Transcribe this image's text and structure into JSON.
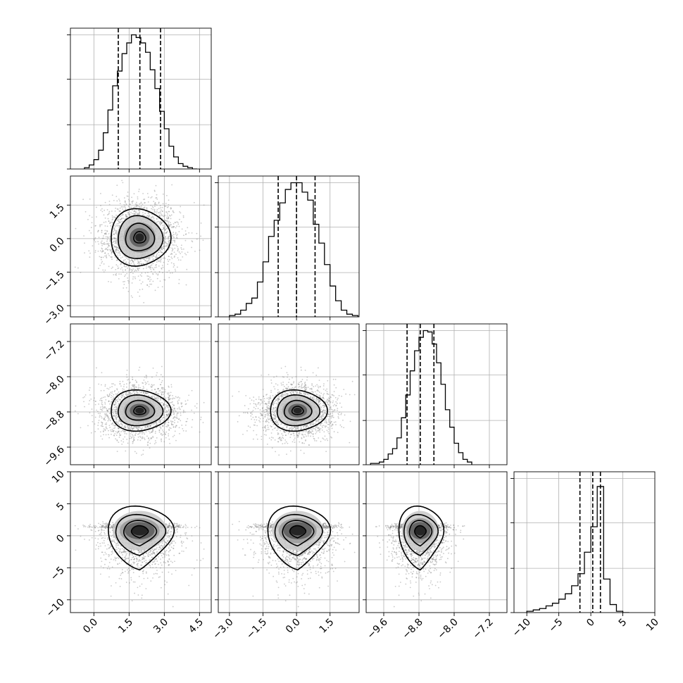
{
  "chart_data": {
    "type": "corner",
    "parameters": 4,
    "quantile_lines": "dashed",
    "grid": true,
    "diagonal": [
      {
        "parameter": 0,
        "xlim": [
          -1.0,
          5.0
        ],
        "ticks": [
          "0.0",
          "1.5",
          "3.0",
          "4.5"
        ],
        "tick_values": [
          0.0,
          1.5,
          3.0,
          4.5
        ],
        "histogram": {
          "bin_edges": [
            -0.4,
            -0.2,
            0.0,
            0.2,
            0.4,
            0.6,
            0.8,
            1.0,
            1.2,
            1.4,
            1.6,
            1.8,
            2.0,
            2.2,
            2.4,
            2.6,
            2.8,
            3.0,
            3.2,
            3.4,
            3.6,
            3.8,
            4.0,
            4.2,
            4.4
          ],
          "heights": [
            0.01,
            0.03,
            0.07,
            0.14,
            0.27,
            0.44,
            0.62,
            0.73,
            0.86,
            0.94,
            1.0,
            0.98,
            0.94,
            0.87,
            0.74,
            0.6,
            0.43,
            0.3,
            0.17,
            0.09,
            0.04,
            0.02,
            0.01,
            0.0
          ]
        },
        "quantiles": [
          1.04,
          1.96,
          2.84
        ]
      },
      {
        "parameter": 1,
        "xlim": [
          -3.5,
          2.8
        ],
        "ticks": [
          "-3.0",
          "-1.5",
          "0.0",
          "1.5"
        ],
        "tick_values": [
          -3.0,
          -1.5,
          0.0,
          1.5
        ],
        "histogram": {
          "bin_edges": [
            -3.0,
            -2.75,
            -2.5,
            -2.25,
            -2.0,
            -1.75,
            -1.5,
            -1.25,
            -1.0,
            -0.75,
            -0.5,
            -0.25,
            0.0,
            0.25,
            0.5,
            0.75,
            1.0,
            1.25,
            1.5,
            1.75,
            2.0,
            2.25,
            2.5,
            2.75
          ],
          "heights": [
            0.01,
            0.02,
            0.05,
            0.1,
            0.14,
            0.26,
            0.41,
            0.6,
            0.72,
            0.85,
            0.95,
            1.0,
            1.0,
            0.93,
            0.87,
            0.69,
            0.55,
            0.39,
            0.23,
            0.12,
            0.05,
            0.02,
            0.01
          ]
        },
        "quantiles": [
          -0.82,
          0.0,
          0.83
        ]
      },
      {
        "parameter": 2,
        "xlim": [
          -10.0,
          -6.8
        ],
        "ticks": [
          "-9.6",
          "-8.8",
          "-8.0",
          "-7.2"
        ],
        "tick_values": [
          -9.6,
          -8.8,
          -8.0,
          -7.2
        ],
        "histogram": {
          "bin_edges": [
            -9.9,
            -9.8,
            -9.7,
            -9.6,
            -9.5,
            -9.4,
            -9.3,
            -9.2,
            -9.1,
            -9.0,
            -8.9,
            -8.8,
            -8.7,
            -8.6,
            -8.5,
            -8.4,
            -8.3,
            -8.2,
            -8.1,
            -8.0,
            -7.9,
            -7.8,
            -7.7,
            -7.6
          ],
          "heights": [
            0.01,
            0.01,
            0.02,
            0.04,
            0.08,
            0.12,
            0.2,
            0.35,
            0.52,
            0.7,
            0.85,
            0.95,
            1.0,
            0.99,
            0.9,
            0.76,
            0.6,
            0.41,
            0.28,
            0.16,
            0.09,
            0.04,
            0.02
          ]
        },
        "quantiles": [
          -9.07,
          -8.77,
          -8.46
        ]
      },
      {
        "parameter": 3,
        "xlim": [
          -12.0,
          10.0
        ],
        "ticks": [
          "-10",
          "-5",
          "0",
          "5",
          "10"
        ],
        "tick_values": [
          -10,
          -5,
          0,
          5,
          10
        ],
        "histogram": {
          "bin_edges": [
            -10.0,
            -9.0,
            -8.0,
            -7.0,
            -6.0,
            -5.0,
            -4.0,
            -3.0,
            -2.0,
            -1.0,
            0.0,
            1.0,
            2.0,
            3.0,
            4.0,
            5.0,
            6.0
          ],
          "heights": [
            0.01,
            0.02,
            0.03,
            0.05,
            0.07,
            0.1,
            0.14,
            0.2,
            0.29,
            0.45,
            0.64,
            0.94,
            0.25,
            0.06,
            0.01,
            0.0
          ]
        },
        "quantiles": [
          -1.7,
          0.3,
          1.5
        ]
      }
    ],
    "scatter_points": 4000,
    "contour_levels": 4,
    "yranges": [
      [
        -1.0,
        5.0
      ],
      [
        -3.5,
        2.8
      ],
      [
        -10.0,
        -6.8
      ],
      [
        -12.0,
        10.0
      ]
    ],
    "yticks": [
      [],
      [
        "-3.0",
        "-1.5",
        "0.0",
        "1.5"
      ],
      [
        "-9.6",
        "-8.8",
        "-8.0",
        "-7.2"
      ],
      [
        "-10",
        "-5",
        "0",
        "5",
        "10"
      ]
    ],
    "ytick_values": [
      [],
      [
        -3.0,
        -1.5,
        0.0,
        1.5
      ],
      [
        -9.6,
        -8.8,
        -8.0,
        -7.2
      ],
      [
        -10,
        -5,
        0,
        5,
        10
      ]
    ],
    "distribution": {
      "means": [
        1.95,
        0.05,
        -8.77,
        0.0
      ],
      "sigmas": [
        0.85,
        0.85,
        0.31,
        3.2
      ]
    }
  }
}
